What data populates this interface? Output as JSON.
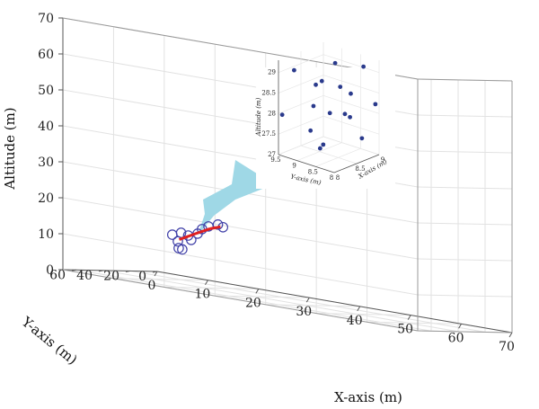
{
  "chart_data": {
    "type": "scatter",
    "projection": "3d",
    "title": "",
    "xlabel": "X-axis (m)",
    "ylabel": "Y-axis (m)",
    "zlabel": "Altitude (m)",
    "xlim": [
      0,
      70
    ],
    "ylim": [
      0,
      70
    ],
    "zlim": [
      0,
      70
    ],
    "x_ticks": [
      "0",
      "10",
      "20",
      "30",
      "40",
      "50",
      "60",
      "70"
    ],
    "y_ticks": [
      "0",
      "20",
      "40",
      "60"
    ],
    "z_ticks": [
      "0",
      "10",
      "20",
      "30",
      "40",
      "50",
      "60",
      "70"
    ],
    "grid": true,
    "series": [
      {
        "marker": "open-circle",
        "color": "#4040a8",
        "points": [
          [
            7.0,
            11.0,
            10.0
          ],
          [
            6.5,
            8.5,
            8.0
          ],
          [
            5.5,
            9.5,
            11.5
          ],
          [
            7.5,
            10.5,
            12.5
          ],
          [
            8.5,
            9.0,
            12.0
          ],
          [
            9.5,
            10.5,
            11.0
          ],
          [
            10.5,
            9.5,
            13.0
          ],
          [
            11.5,
            10.0,
            14.5
          ],
          [
            12.5,
            9.0,
            15.5
          ],
          [
            14.5,
            9.5,
            16.5
          ],
          [
            15.5,
            9.5,
            16.0
          ],
          [
            8.0,
            11.5,
            8.0
          ]
        ]
      },
      {
        "marker": "path",
        "color": "#e02020",
        "points": [
          [
            7.0,
            10.0,
            10.5
          ],
          [
            9.0,
            10.0,
            12.0
          ],
          [
            11.0,
            10.0,
            13.5
          ],
          [
            13.0,
            9.5,
            15.0
          ],
          [
            15.0,
            9.5,
            16.0
          ]
        ]
      }
    ],
    "inset": {
      "xlabel": "X-axis (m)",
      "ylabel": "Y-axis (m)",
      "zlabel": "Altitude (m)",
      "xlim": [
        8,
        9
      ],
      "ylim": [
        8,
        9.5
      ],
      "zlim": [
        27,
        29.3
      ],
      "x_ticks": [
        "8",
        "8.5",
        "9"
      ],
      "y_ticks": [
        "8",
        "8.5",
        "9",
        "9.5"
      ],
      "z_ticks": [
        "27",
        "27.5",
        "28",
        "28.5",
        "29"
      ],
      "color": "#2a3a8c",
      "points": [
        [
          8.6,
          8.7,
          29.2
        ],
        [
          8.1,
          9.2,
          29.1
        ],
        [
          8.9,
          8.3,
          29.1
        ],
        [
          8.3,
          8.2,
          28.9
        ],
        [
          8.5,
          9.1,
          28.6
        ],
        [
          8.7,
          8.4,
          28.5
        ],
        [
          8.8,
          9.3,
          28.5
        ],
        [
          8.2,
          8.8,
          28.3
        ],
        [
          8.4,
          8.6,
          28.1
        ],
        [
          9.0,
          8.1,
          28.2
        ],
        [
          8.0,
          9.4,
          28.0
        ],
        [
          8.6,
          8.3,
          28.0
        ],
        [
          8.9,
          8.8,
          27.8
        ],
        [
          8.3,
          9.0,
          27.6
        ],
        [
          8.7,
          8.1,
          27.5
        ],
        [
          8.1,
          8.5,
          27.4
        ],
        [
          8.5,
          8.9,
          27.2
        ]
      ]
    },
    "annotation_arrow_color": "#9fd8e6"
  }
}
